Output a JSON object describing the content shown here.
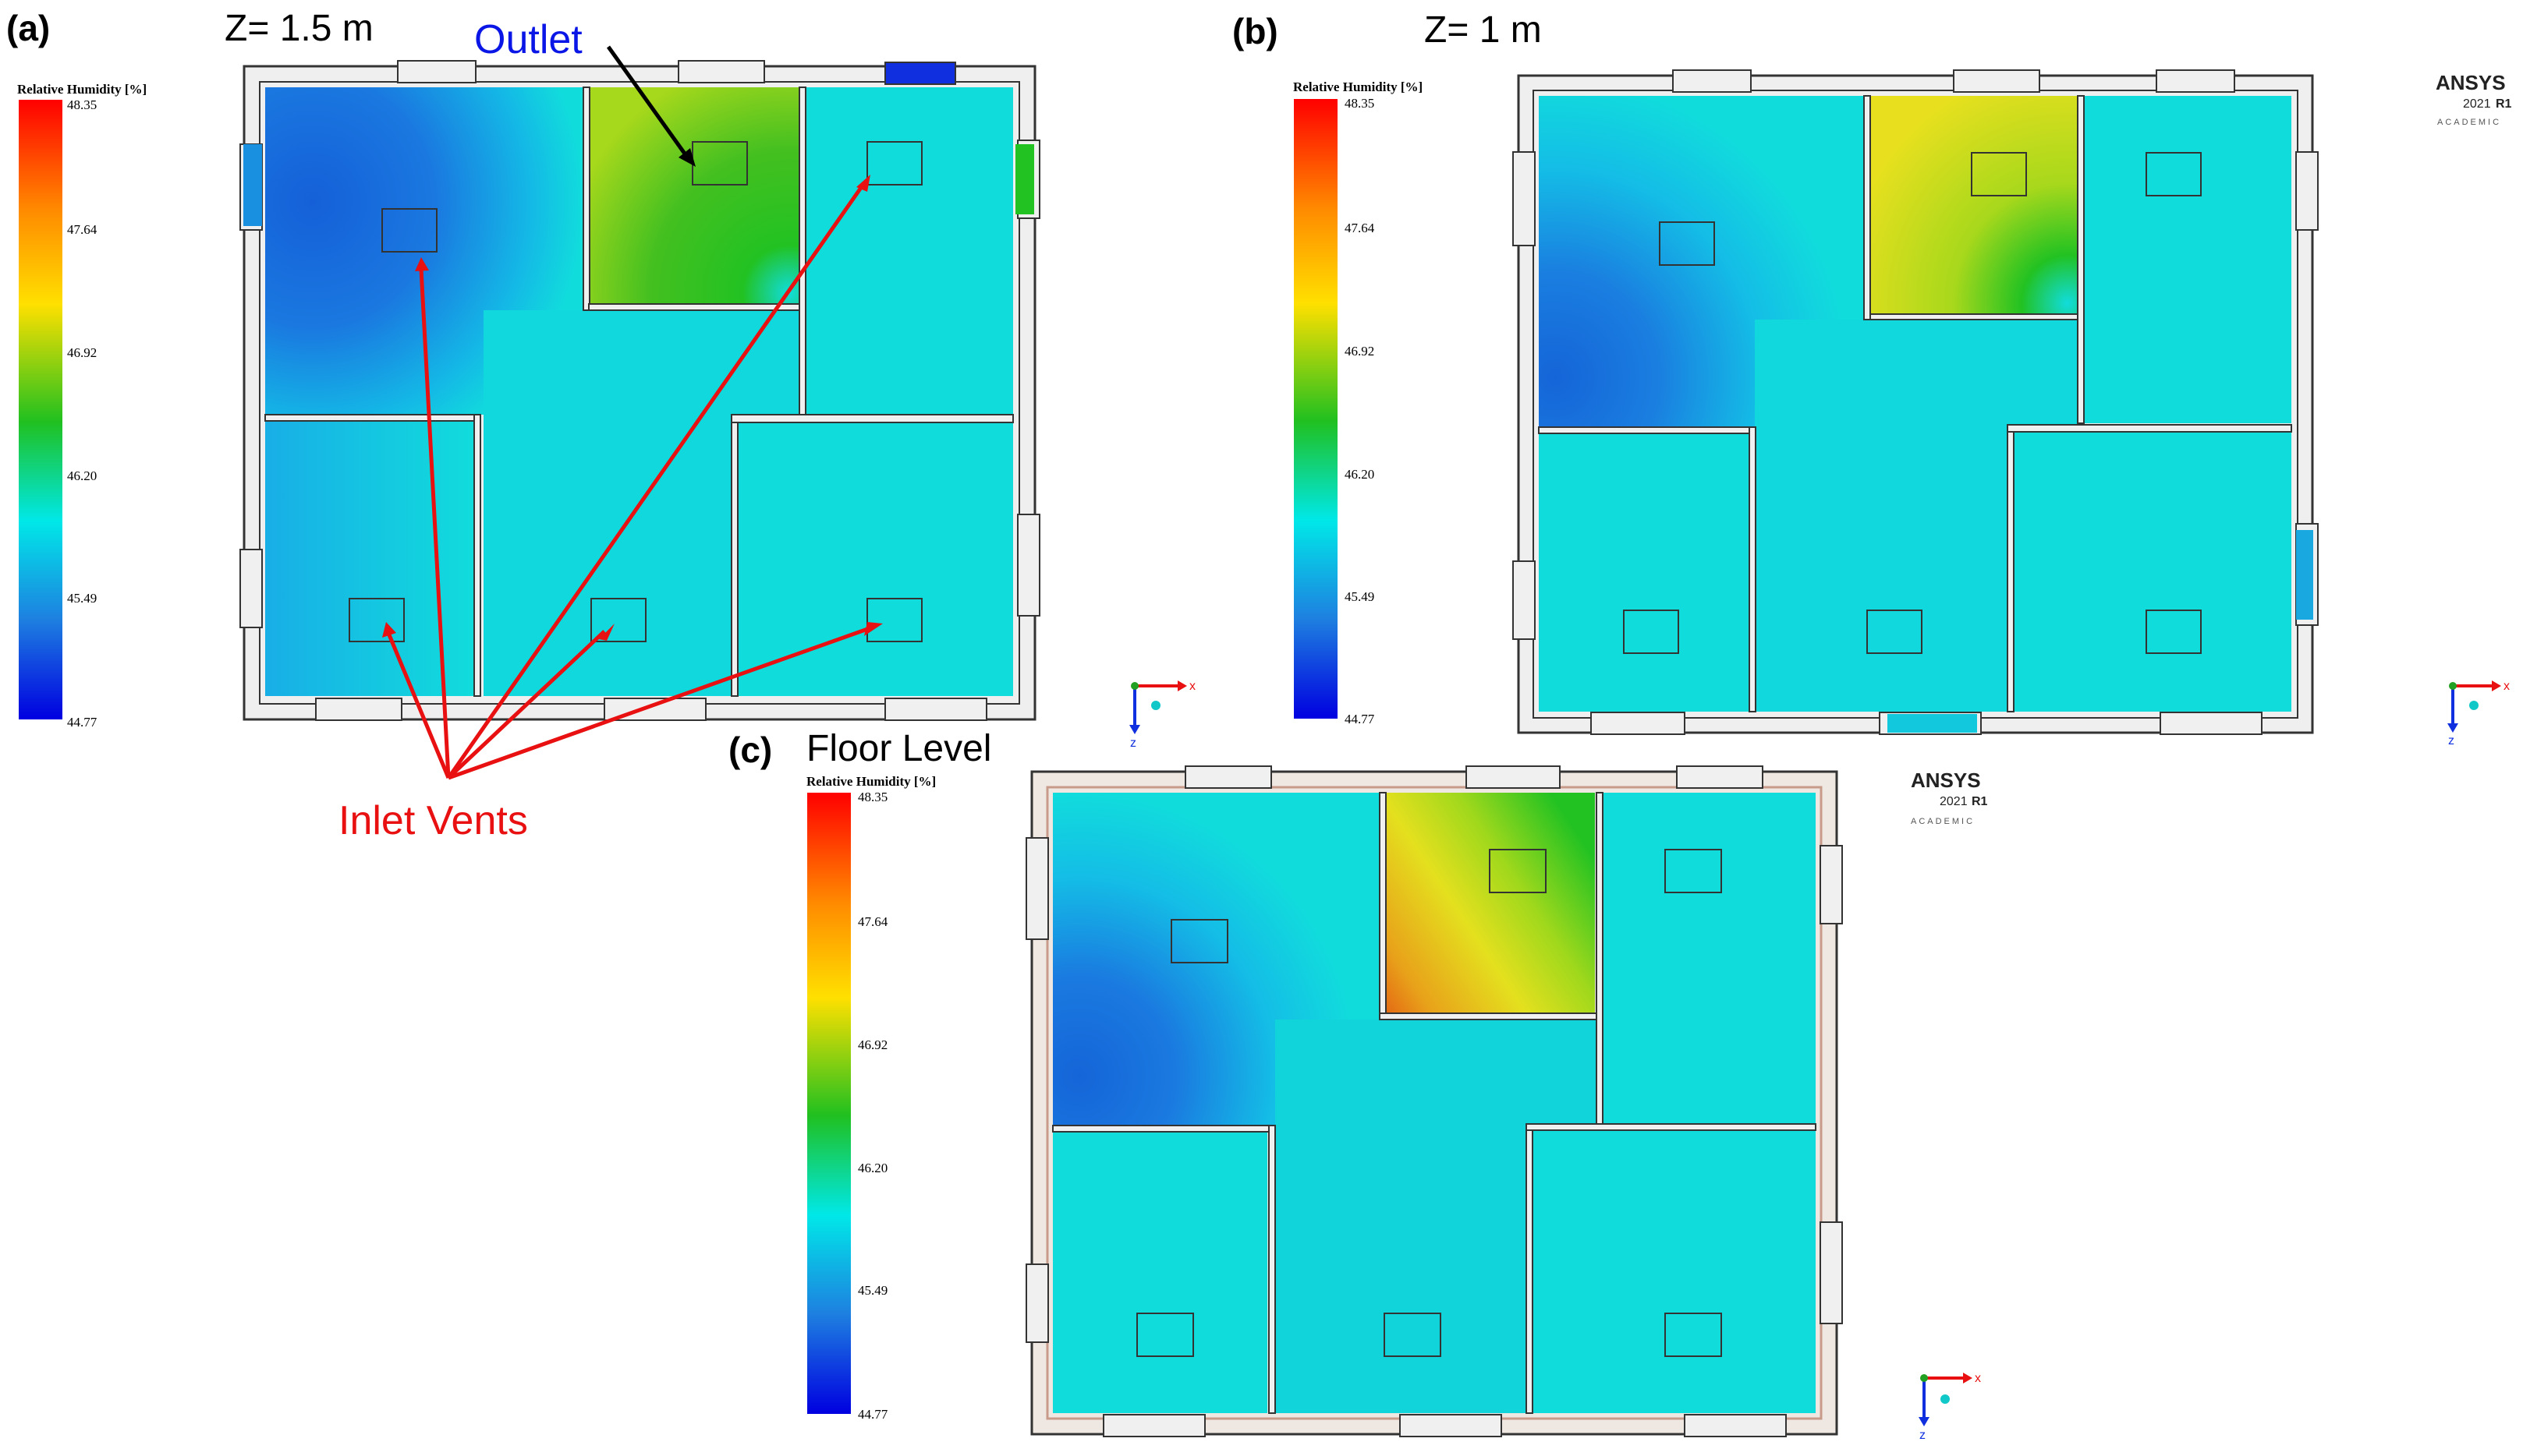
{
  "panels": {
    "a": {
      "label": "(a)",
      "title": "Z= 1.5 m"
    },
    "b": {
      "label": "(b)",
      "title": "Z= 1 m"
    },
    "c": {
      "label": "(c)",
      "title": "Floor Level"
    }
  },
  "annotations": {
    "outlet": "Outlet",
    "inlet_vents": "Inlet Vents"
  },
  "legend": {
    "title": "Relative Humidity [%]",
    "ticks": [
      "48.35",
      "47.64",
      "46.92",
      "46.20",
      "45.49",
      "44.77"
    ],
    "colors": [
      "#ff0000",
      "#ff8c00",
      "#ffe000",
      "#20c020",
      "#00e8e8",
      "#1e7fe0",
      "#0000e0"
    ]
  },
  "branding": {
    "name": "ANSYS",
    "version": "2021",
    "release": "R1",
    "edition": "ACADEMIC"
  },
  "axes": {
    "x": "x",
    "z": "z"
  },
  "colors": {
    "wall": "#f0f0f0",
    "wall_stroke": "#333333",
    "cyan": "#11dcdc",
    "blue": "#1a72dc",
    "green": "#22c222",
    "yellow": "#dce81e",
    "orange": "#e46a14",
    "annotation_red": "#e81010",
    "annotation_blue": "#0a16e6"
  }
}
